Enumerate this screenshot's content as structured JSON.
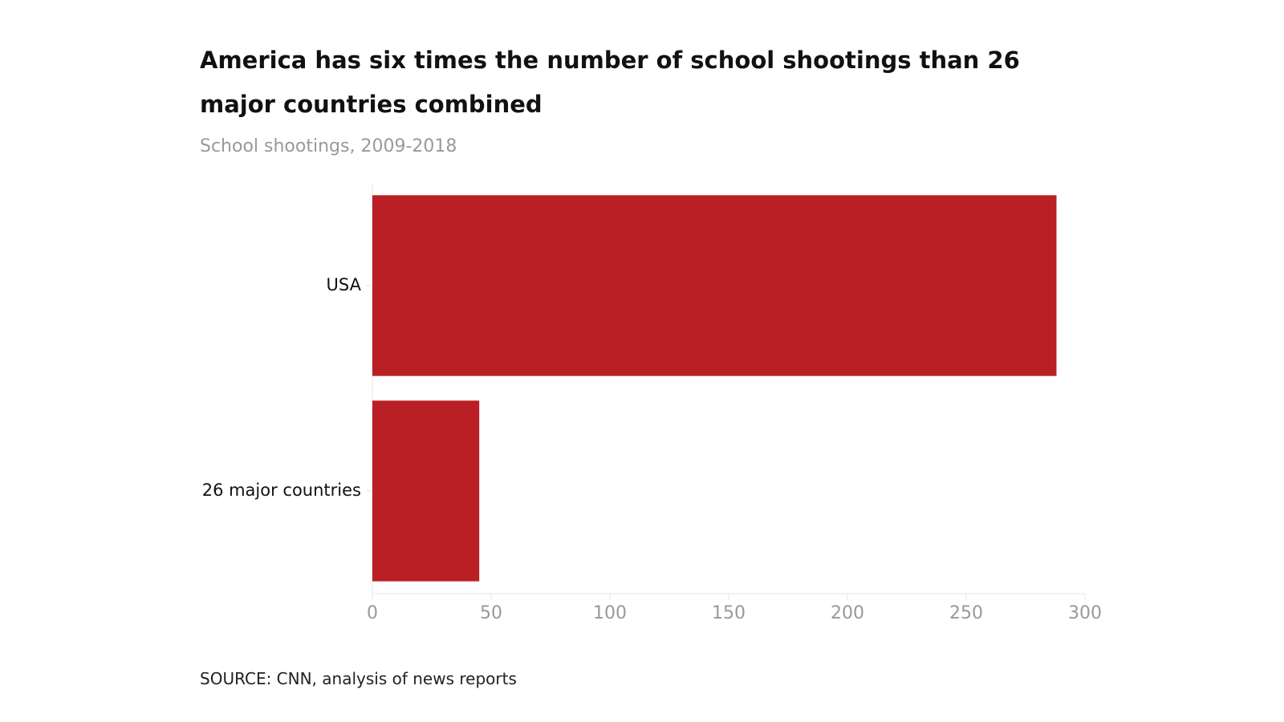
{
  "chart_data": {
    "type": "barh",
    "title": "America has six times the number of school shootings than 26 major countries combined",
    "subtitle": "School shootings, 2009-2018",
    "source": "SOURCE: CNN, analysis of news reports",
    "categories": [
      "USA",
      "26 major countries"
    ],
    "values": [
      288,
      45
    ],
    "color": "#b91f24",
    "xlim": [
      0,
      300
    ],
    "xticks": [
      0,
      50,
      100,
      150,
      200,
      250,
      300
    ]
  }
}
